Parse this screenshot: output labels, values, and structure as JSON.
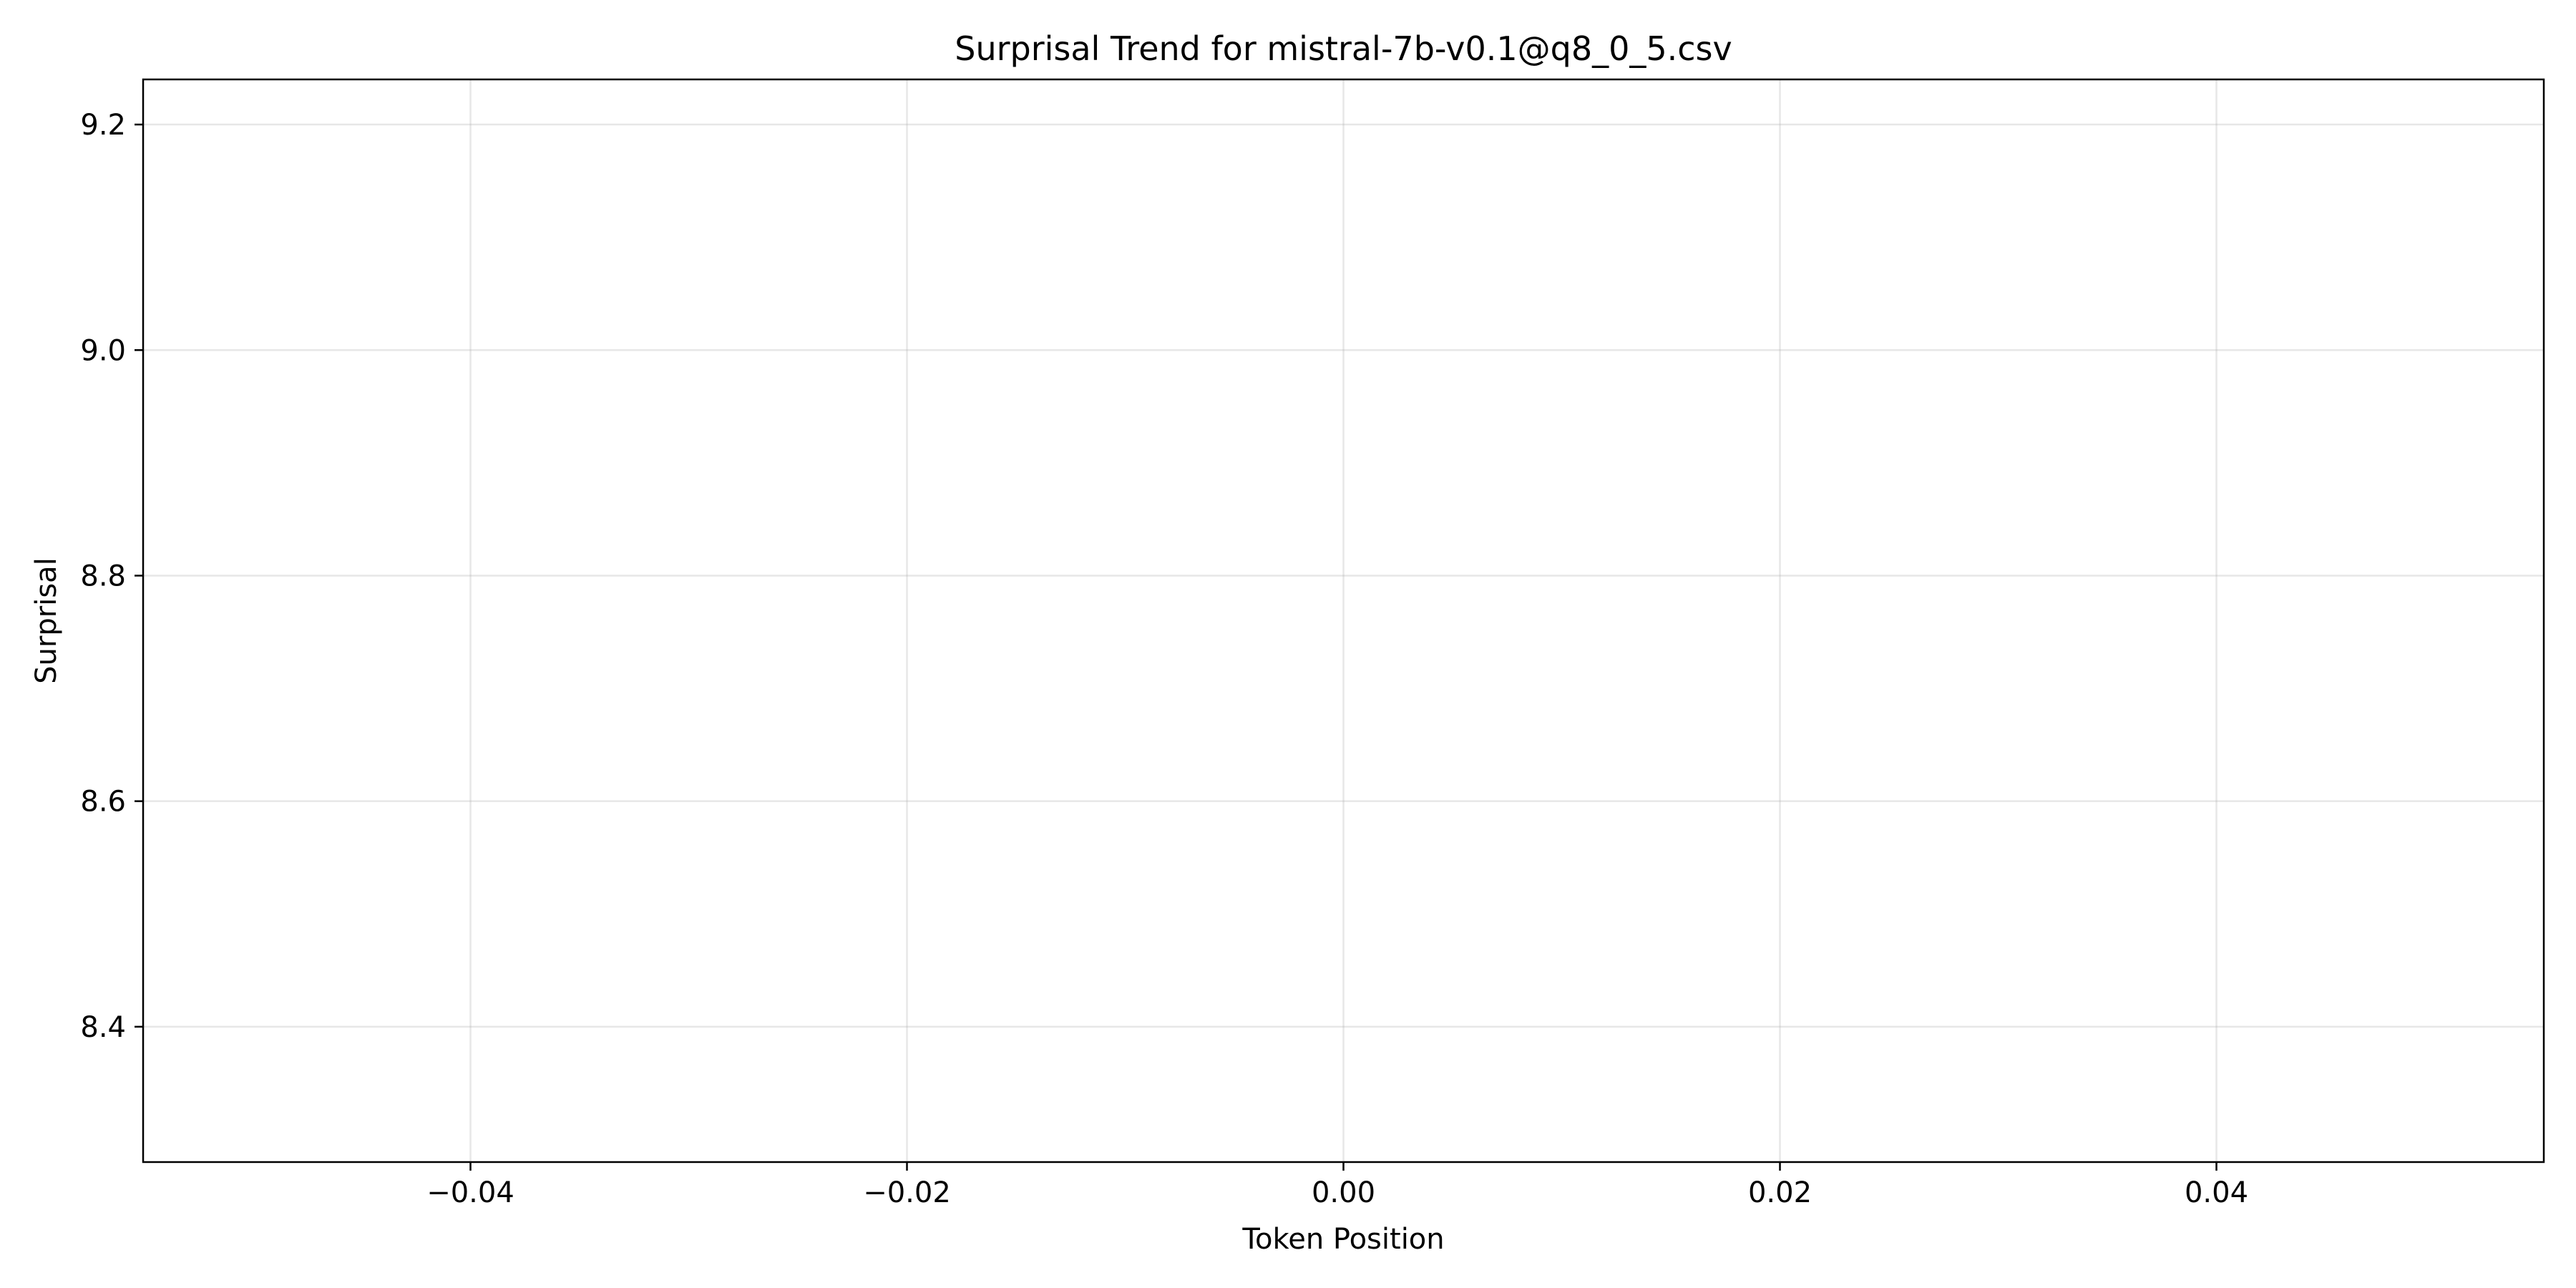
{
  "chart_data": {
    "type": "line",
    "title": "Surprisal Trend for mistral-7b-v0.1@q8_0_5.csv",
    "xlabel": "Token Position",
    "ylabel": "Surprisal",
    "xlim": [
      -0.055,
      0.055
    ],
    "ylim": [
      8.28,
      9.24
    ],
    "x_ticks": [
      -0.04,
      -0.02,
      0.0,
      0.02,
      0.04
    ],
    "x_tick_labels": [
      "−0.04",
      "−0.02",
      "0.00",
      "0.02",
      "0.04"
    ],
    "y_ticks": [
      8.4,
      8.6,
      8.8,
      9.0,
      9.2
    ],
    "y_tick_labels": [
      "8.4",
      "8.6",
      "8.8",
      "9.0",
      "9.2"
    ],
    "grid": true,
    "series": [
      {
        "x": [],
        "y": []
      }
    ],
    "colors": {
      "grid": "#b0b0b0",
      "axes": "#000000",
      "line": "#1f77b4"
    }
  }
}
